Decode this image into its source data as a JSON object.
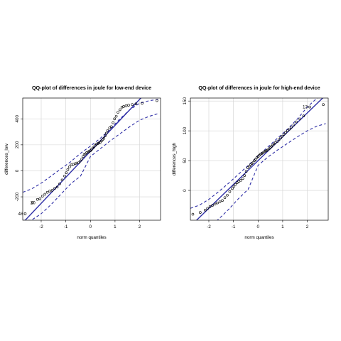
{
  "chart_data": [
    {
      "type": "scatter",
      "subtype": "qq-plot",
      "title": "QQ-plot of differences in joule for low-end device",
      "xlabel": "norm quantiles",
      "ylabel": "differences_low",
      "xlim": [
        -2.75,
        2.85
      ],
      "ylim": [
        -380,
        560
      ],
      "xticks": [
        -2,
        -1,
        0,
        1,
        2
      ],
      "yticks": [
        -200,
        0,
        200,
        400
      ],
      "grid": true,
      "colors": {
        "line": "#2e2ea6",
        "points": "#000000",
        "grid": "#d3d3d3"
      },
      "reference_line": {
        "intercept": 150,
        "slope": 200
      },
      "envelope": {
        "x": [
          -2.75,
          -2.4,
          -2.0,
          -1.6,
          -1.2,
          -0.8,
          -0.4,
          0.0,
          0.4,
          0.8,
          1.2,
          1.6,
          2.0,
          2.4,
          2.75
        ],
        "upper": [
          -165,
          -140,
          -95,
          -40,
          15,
          70,
          135,
          190,
          250,
          320,
          400,
          470,
          520,
          540,
          550
        ],
        "lower": [
          -380,
          -380,
          -330,
          -260,
          -180,
          -100,
          -40,
          110,
          170,
          230,
          285,
          340,
          390,
          420,
          440
        ]
      },
      "points": {
        "x": [
          -2.65,
          -2.35,
          -2.15,
          -2.05,
          -1.95,
          -1.85,
          -1.75,
          -1.65,
          -1.55,
          -1.45,
          -1.35,
          -1.25,
          -1.15,
          -1.05,
          -0.98,
          -0.92,
          -0.85,
          -0.78,
          -0.7,
          -0.62,
          -0.55,
          -0.48,
          -0.42,
          -0.35,
          -0.3,
          -0.25,
          -0.2,
          -0.15,
          -0.1,
          -0.05,
          0.0,
          0.05,
          0.1,
          0.15,
          0.2,
          0.25,
          0.3,
          0.35,
          0.4,
          0.45,
          0.5,
          0.55,
          0.6,
          0.65,
          0.7,
          0.78,
          0.85,
          0.92,
          0.98,
          1.05,
          1.12,
          1.2,
          1.28,
          1.35,
          1.45,
          1.55,
          1.7,
          1.85,
          2.1,
          2.7
        ],
        "y": [
          -330,
          -245,
          -220,
          -215,
          -195,
          -180,
          -165,
          -155,
          -150,
          -135,
          -125,
          -100,
          -70,
          -40,
          -15,
          10,
          30,
          45,
          50,
          55,
          60,
          62,
          75,
          90,
          110,
          125,
          130,
          140,
          145,
          150,
          155,
          165,
          175,
          185,
          195,
          205,
          210,
          215,
          220,
          230,
          240,
          250,
          270,
          290,
          310,
          330,
          340,
          370,
          400,
          420,
          450,
          470,
          490,
          495,
          500,
          505,
          510,
          515,
          520,
          540
        ]
      },
      "point_labels": [
        {
          "text": "48",
          "x": -2.65,
          "y": -330
        },
        {
          "text": "20",
          "x": -2.15,
          "y": -245
        }
      ]
    },
    {
      "type": "scatter",
      "subtype": "qq-plot",
      "title": "QQ-plot of differences in joule for high-end device",
      "xlabel": "norm quantiles",
      "ylabel": "differences_high",
      "xlim": [
        -2.75,
        2.85
      ],
      "ylim": [
        -50,
        155
      ],
      "xticks": [
        -2,
        -1,
        0,
        1,
        2
      ],
      "yticks": [
        0,
        50,
        100,
        150
      ],
      "grid": true,
      "colors": {
        "line": "#2e2ea6",
        "points": "#000000",
        "grid": "#d3d3d3"
      },
      "reference_line": {
        "intercept": 50,
        "slope": 40
      },
      "envelope": {
        "x": [
          -2.75,
          -2.4,
          -2.0,
          -1.6,
          -1.2,
          -0.8,
          -0.4,
          0.0,
          0.4,
          0.8,
          1.2,
          1.6,
          2.0,
          2.4,
          2.75
        ],
        "upper": [
          -30,
          -25,
          -15,
          -2,
          12,
          27,
          42,
          58,
          73,
          88,
          103,
          120,
          140,
          155,
          160
        ],
        "lower": [
          -75,
          -70,
          -62,
          -48,
          -32,
          -14,
          2,
          42,
          56,
          68,
          79,
          90,
          100,
          108,
          112
        ]
      },
      "points": {
        "x": [
          -2.65,
          -2.35,
          -2.15,
          -2.05,
          -1.95,
          -1.85,
          -1.75,
          -1.65,
          -1.55,
          -1.45,
          -1.35,
          -1.25,
          -1.15,
          -1.05,
          -0.98,
          -0.92,
          -0.85,
          -0.78,
          -0.7,
          -0.62,
          -0.55,
          -0.48,
          -0.42,
          -0.35,
          -0.3,
          -0.25,
          -0.2,
          -0.15,
          -0.1,
          -0.05,
          0.0,
          0.05,
          0.1,
          0.15,
          0.2,
          0.25,
          0.3,
          0.35,
          0.4,
          0.45,
          0.5,
          0.55,
          0.6,
          0.65,
          0.7,
          0.78,
          0.85,
          0.92,
          0.98,
          1.05,
          1.12,
          1.2,
          1.28,
          1.35,
          1.45,
          1.55,
          1.7,
          1.85,
          2.1,
          2.65
        ],
        "y": [
          -40,
          -37,
          -33,
          -30,
          -27,
          -25,
          -23,
          -21,
          -19,
          -17,
          -12,
          -8,
          -2,
          3,
          7,
          10,
          13,
          15,
          17,
          20,
          25,
          32,
          38,
          41,
          43,
          45,
          47,
          50,
          52,
          55,
          57,
          59,
          61,
          62,
          63,
          65,
          66,
          67,
          68,
          70,
          72,
          74,
          76,
          78,
          80,
          82,
          85,
          88,
          91,
          94,
          97,
          100,
          103,
          106,
          110,
          115,
          120,
          125,
          140,
          144
        ]
      },
      "point_labels": [
        {
          "text": "13",
          "x": 2.1,
          "y": 140
        }
      ]
    }
  ]
}
